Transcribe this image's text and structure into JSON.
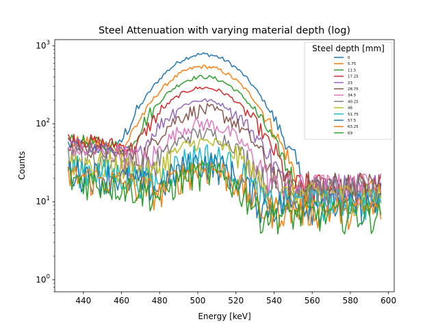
{
  "chart_data": {
    "type": "line",
    "title": "Steel Attenuation with varying material depth (log)",
    "xlabel": "Energy [keV]",
    "ylabel": "Counts",
    "xlim": [
      425,
      603
    ],
    "ylim": [
      0.7,
      1200
    ],
    "y_scale": "log",
    "x_ticks": [
      "440",
      "460",
      "480",
      "500",
      "520",
      "540",
      "560",
      "580",
      "600"
    ],
    "y_ticks": [
      {
        "base": "10",
        "exp": "0"
      },
      {
        "base": "10",
        "exp": "1"
      },
      {
        "base": "10",
        "exp": "2"
      },
      {
        "base": "10",
        "exp": "3"
      }
    ],
    "grid": false,
    "legend": {
      "title": "Steel depth [mm]",
      "position": "top-right"
    },
    "x_range": [
      432,
      596
    ],
    "series": [
      {
        "name": "0",
        "color": "#1f77b4",
        "peak": 780,
        "baseline": 55,
        "tail": 14
      },
      {
        "name": "5.75",
        "color": "#ff7f0e",
        "peak": 540,
        "baseline": 60,
        "tail": 13
      },
      {
        "name": "11.5",
        "color": "#2ca02c",
        "peak": 400,
        "baseline": 62,
        "tail": 12
      },
      {
        "name": "17.25",
        "color": "#d62728",
        "peak": 290,
        "baseline": 65,
        "tail": 16
      },
      {
        "name": "23",
        "color": "#9467bd",
        "peak": 200,
        "baseline": 55,
        "tail": 16
      },
      {
        "name": "28.75",
        "color": "#8c564b",
        "peak": 150,
        "baseline": 50,
        "tail": 17
      },
      {
        "name": "34.5",
        "color": "#e377c2",
        "peak": 100,
        "baseline": 48,
        "tail": 16
      },
      {
        "name": "40.25",
        "color": "#7f7f7f",
        "peak": 75,
        "baseline": 40,
        "tail": 14
      },
      {
        "name": "46",
        "color": "#bcbd22",
        "peak": 58,
        "baseline": 35,
        "tail": 12
      },
      {
        "name": "51.75",
        "color": "#17becf",
        "peak": 40,
        "baseline": 28,
        "tail": 10
      },
      {
        "name": "57.5",
        "color": "#1f77b4",
        "peak": 32,
        "baseline": 25,
        "tail": 9
      },
      {
        "name": "63.25",
        "color": "#ff7f0e",
        "peak": 27,
        "baseline": 22,
        "tail": 8
      },
      {
        "name": "69",
        "color": "#2ca02c",
        "peak": 24,
        "baseline": 20,
        "tail": 7
      }
    ]
  }
}
